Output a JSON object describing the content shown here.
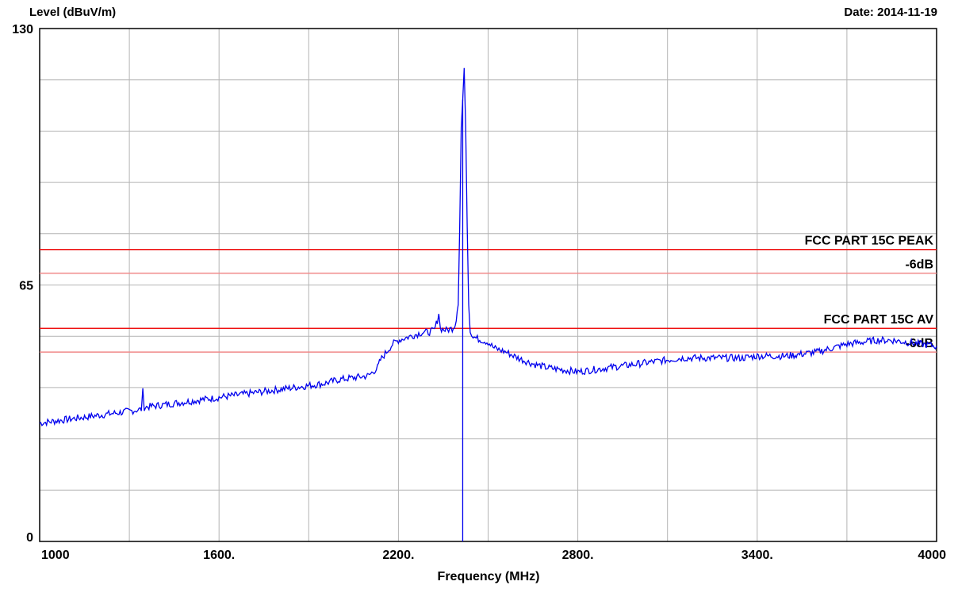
{
  "chart_data": {
    "type": "line",
    "ylabel": "Level (dBuV/m)",
    "xlabel": "Frequency (MHz)",
    "date": "Date: 2014-11-19",
    "xlim": [
      1000,
      4000
    ],
    "ylim": [
      0,
      130
    ],
    "x_ticks": [
      {
        "value": 1000,
        "label": "1000"
      },
      {
        "value": 1600,
        "label": "1600."
      },
      {
        "value": 2200,
        "label": "2200."
      },
      {
        "value": 2800,
        "label": "2800."
      },
      {
        "value": 3400,
        "label": "3400."
      },
      {
        "value": 4000,
        "label": "4000"
      }
    ],
    "y_ticks": [
      {
        "value": 0,
        "label": "0"
      },
      {
        "value": 65,
        "label": "65"
      },
      {
        "value": 130,
        "label": "130"
      }
    ],
    "x_grid_step": 300,
    "y_grid_step": 13,
    "grid": true,
    "limit_lines": [
      {
        "label": "FCC PART 15C  PEAK",
        "value": 74,
        "color": "#ee1111"
      },
      {
        "label": "-6dB",
        "value": 68,
        "color": "#f08a8a"
      },
      {
        "label": "FCC PART 15C AV",
        "value": 54,
        "color": "#ee1111"
      },
      {
        "label": "-6dB",
        "value": 48,
        "color": "#f08a8a"
      }
    ],
    "series": [
      {
        "color": "#0000ee",
        "x": [
          1000,
          1050,
          1100,
          1150,
          1200,
          1250,
          1300,
          1340,
          1345,
          1350,
          1400,
          1450,
          1500,
          1550,
          1600,
          1650,
          1700,
          1750,
          1800,
          1850,
          1900,
          1950,
          2000,
          2050,
          2100,
          2130,
          2140,
          2160,
          2180,
          2200,
          2220,
          2240,
          2260,
          2280,
          2300,
          2320,
          2330,
          2335,
          2340,
          2360,
          2380,
          2390,
          2400,
          2405,
          2410,
          2415,
          2420,
          2425,
          2430,
          2435,
          2440,
          2445,
          2450,
          2460,
          2480,
          2500,
          2520,
          2540,
          2560,
          2600,
          2650,
          2700,
          2750,
          2800,
          2850,
          2900,
          2950,
          3000,
          3050,
          3100,
          3150,
          3200,
          3250,
          3300,
          3350,
          3400,
          3450,
          3500,
          3550,
          3600,
          3650,
          3700,
          3750,
          3800,
          3850,
          3900,
          3950,
          4000
        ],
        "y": [
          30,
          30.5,
          31,
          31.5,
          32,
          32.5,
          33,
          33.5,
          38,
          34,
          34.5,
          35,
          35.5,
          36,
          36.5,
          37,
          37.5,
          38,
          38.5,
          39,
          39.5,
          40,
          41,
          41.5,
          42,
          44,
          46,
          48,
          50,
          51,
          51.5,
          52,
          52.5,
          53,
          53,
          53.5,
          56,
          58,
          54,
          53.5,
          54,
          55,
          60,
          80,
          105,
          112,
          120,
          105,
          80,
          60,
          53,
          52,
          52,
          51.5,
          51,
          50.5,
          49,
          48.5,
          48,
          46.5,
          45,
          44,
          43.5,
          43,
          43.5,
          44,
          44.5,
          45,
          45.5,
          46,
          46.5,
          46.5,
          46.5,
          46.5,
          46.5,
          47,
          47,
          47,
          47.5,
          48,
          49,
          50,
          50.5,
          51,
          51,
          50.5,
          50,
          49.5
        ]
      }
    ]
  }
}
